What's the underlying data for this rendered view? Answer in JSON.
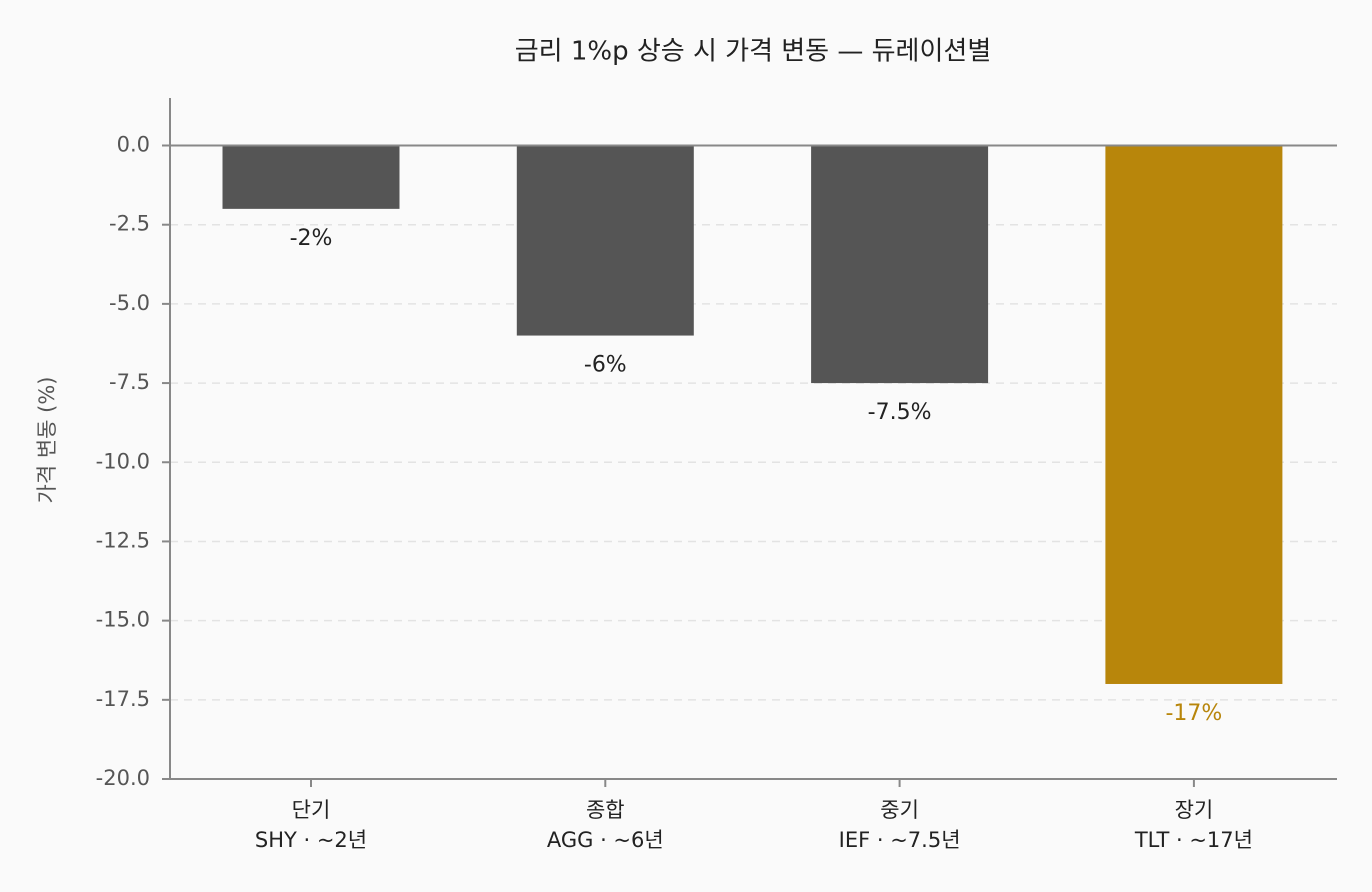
{
  "chart_data": {
    "type": "bar",
    "title": "금리 1%p 상승 시 가격 변동 — 듀레이션별",
    "y_label": "가격 변동 (%)",
    "categories": [
      [
        "단기",
        "SHY · ~2년"
      ],
      [
        "종합",
        "AGG · ~6년"
      ],
      [
        "중기",
        "IEF · ~7.5년"
      ],
      [
        "장기",
        "TLT · ~17년"
      ]
    ],
    "values": [
      -2,
      -6,
      -7.5,
      -17
    ],
    "value_labels": [
      "-2%",
      "-6%",
      "-7.5%",
      "-17%"
    ],
    "colors": [
      "#555555",
      "#555555",
      "#555555",
      "#b8860b"
    ],
    "value_label_colors": [
      "#222222",
      "#222222",
      "#222222",
      "#b8860b"
    ],
    "ylim": [
      -20,
      1.5
    ],
    "yticks": [
      {
        "value": 0,
        "label": "0.0"
      },
      -2.5,
      {
        "value": -5,
        "label": "-5.0"
      },
      -7.5,
      {
        "value": -10,
        "label": "-10.0"
      },
      -12.5,
      {
        "value": -15,
        "label": "-15.0"
      },
      -17.5,
      {
        "value": -20,
        "label": "-20.0"
      }
    ],
    "grid": true
  }
}
